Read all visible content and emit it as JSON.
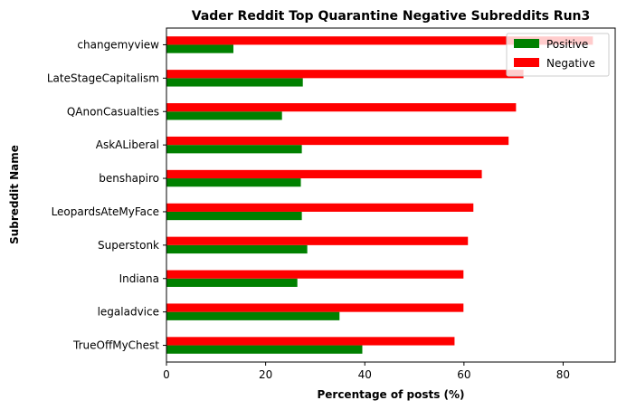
{
  "chart_data": {
    "type": "bar",
    "orientation": "horizontal",
    "title": "Vader Reddit Top Quarantine Negative Subreddits Run3",
    "xlabel": "Percentage of posts (%)",
    "ylabel": "Subreddit Name",
    "xlim": [
      0,
      90.5
    ],
    "xticks": [
      0,
      20,
      40,
      60,
      80
    ],
    "grid": false,
    "legend_position": "top-right",
    "categories": [
      "changemyview",
      "LateStageCapitalism",
      "QAnonCasualties",
      "AskALiberal",
      "benshapiro",
      "LeopardsAteMyFace",
      "Superstonk",
      "Indiana",
      "legaladvice",
      "TrueOffMyChest"
    ],
    "series": [
      {
        "name": "Positive",
        "color": "#008000",
        "values": [
          13.5,
          27.5,
          23.3,
          27.3,
          27.1,
          27.3,
          28.4,
          26.4,
          34.9,
          39.5
        ]
      },
      {
        "name": "Negative",
        "color": "#ff0000",
        "values": [
          86.0,
          72.0,
          70.5,
          69.0,
          63.6,
          61.9,
          60.8,
          59.9,
          59.9,
          58.1
        ]
      }
    ]
  }
}
